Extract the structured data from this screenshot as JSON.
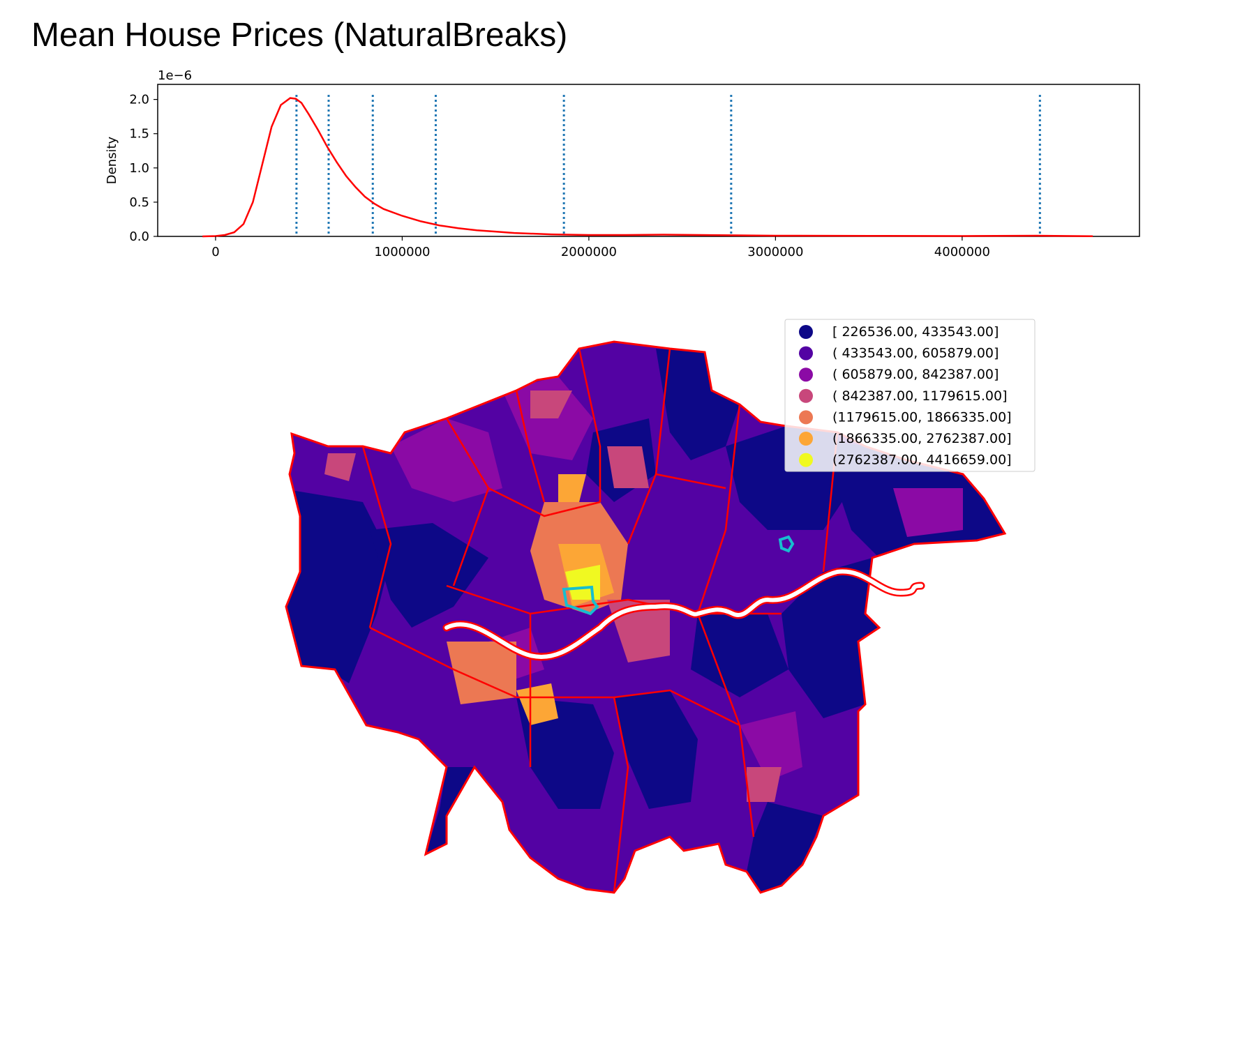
{
  "title": "Mean House Prices (NaturalBreaks)",
  "colors": {
    "kde": "#ff0000",
    "break_lines": "#1f77b4",
    "borough_borders": "#ff0000",
    "highlight": "#17becf",
    "river": "#ffffff"
  },
  "chart_data": [
    {
      "type": "line",
      "name": "kde",
      "xlabel": "",
      "ylabel": "Density",
      "y_offset_text": "1e−6",
      "xlim": [
        -310000,
        4950000
      ],
      "ylim": [
        0,
        2.22
      ],
      "x_ticks": [
        0,
        1000000,
        2000000,
        3000000,
        4000000
      ],
      "x_tick_labels": [
        "0",
        "1000000",
        "2000000",
        "3000000",
        "4000000"
      ],
      "y_ticks": [
        0.0,
        0.5,
        1.0,
        1.5,
        2.0
      ],
      "y_tick_labels": [
        "0.0",
        "0.5",
        "1.0",
        "1.5",
        "2.0"
      ],
      "series": [
        {
          "x": [
            -70000,
            0,
            50000,
            100000,
            150000,
            200000,
            250000,
            300000,
            350000,
            400000,
            430000,
            460000,
            500000,
            550000,
            600000,
            650000,
            700000,
            750000,
            800000,
            850000,
            900000,
            1000000,
            1100000,
            1200000,
            1300000,
            1400000,
            1500000,
            1600000,
            1800000,
            2000000,
            2200000,
            2400000,
            2600000,
            2800000,
            3000000,
            3500000,
            4000000,
            4400000,
            4700000
          ],
          "y": [
            0.0,
            0.005,
            0.02,
            0.06,
            0.18,
            0.5,
            1.05,
            1.6,
            1.92,
            2.02,
            2.01,
            1.95,
            1.78,
            1.55,
            1.3,
            1.08,
            0.88,
            0.72,
            0.58,
            0.48,
            0.4,
            0.3,
            0.22,
            0.16,
            0.12,
            0.09,
            0.07,
            0.05,
            0.03,
            0.02,
            0.02,
            0.025,
            0.02,
            0.015,
            0.01,
            0.008,
            0.005,
            0.01,
            0.002
          ]
        }
      ],
      "vlines": [
        433543,
        605879,
        842387,
        1179615,
        1866335,
        2762387,
        4416659
      ]
    },
    {
      "type": "choropleth",
      "legend_placement": "top-right",
      "legend": [
        {
          "label": "[ 226536.00,  433543.00]",
          "color": "#0d0887"
        },
        {
          "label": "( 433543.00,  605879.00]",
          "color": "#5302a3"
        },
        {
          "label": "( 605879.00,  842387.00]",
          "color": "#8b0aa5"
        },
        {
          "label": "( 842387.00, 1179615.00]",
          "color": "#c8477b"
        },
        {
          "label": "(1179615.00, 1866335.00]",
          "color": "#ec7853"
        },
        {
          "label": "(1866335.00, 2762387.00]",
          "color": "#fca636"
        },
        {
          "label": "(2762387.00, 4416659.00]",
          "color": "#f0f921"
        }
      ]
    }
  ]
}
